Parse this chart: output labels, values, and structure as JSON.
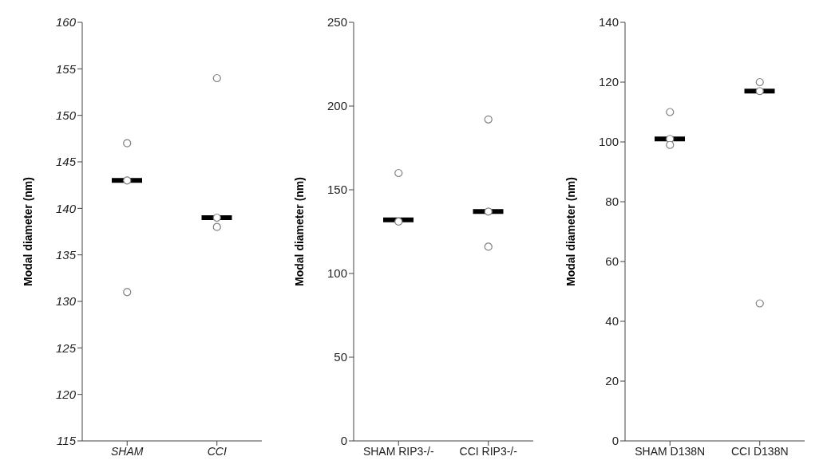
{
  "chart_data": [
    {
      "type": "box",
      "ylabel": "Modal diameter (nm)",
      "categories": [
        "SHAM",
        "CCI"
      ],
      "ylim": [
        115,
        160
      ],
      "yticks": [
        115,
        120,
        125,
        130,
        135,
        140,
        145,
        150,
        155,
        160
      ],
      "grid": false,
      "legend": false,
      "boxes": [
        {
          "low": 143,
          "q1": 143,
          "median": 143,
          "q3": 143,
          "high": 143
        },
        {
          "low": 139,
          "q1": 139,
          "median": 139,
          "q3": 139,
          "high": 139
        }
      ],
      "series": [
        {
          "type": "scatter",
          "color": "#808080",
          "marker": "circle",
          "x": [
            "SHAM",
            "SHAM",
            "SHAM",
            "CCI",
            "CCI",
            "CCI"
          ],
          "values": [
            147,
            143,
            131,
            154,
            139,
            138
          ]
        }
      ]
    },
    {
      "type": "box",
      "ylabel": "Modal diameter (nm)",
      "categories": [
        "SHAM RIP3-/-",
        "CCI RIP3-/-"
      ],
      "ylim": [
        0,
        250
      ],
      "yticks": [
        0,
        50,
        100,
        150,
        200,
        250
      ],
      "grid": false,
      "legend": false,
      "boxes": [
        {
          "low": 132,
          "q1": 132,
          "median": 132,
          "q3": 132,
          "high": 132
        },
        {
          "low": 137,
          "q1": 137,
          "median": 137,
          "q3": 137,
          "high": 137
        }
      ],
      "series": [
        {
          "type": "scatter",
          "color": "#808080",
          "marker": "circle",
          "x": [
            "SHAM RIP3-/-",
            "SHAM RIP3-/-",
            "SHAM RIP3-/-",
            "CCI RIP3-/-",
            "CCI RIP3-/-",
            "CCI RIP3-/-"
          ],
          "values": [
            160,
            null,
            131,
            192,
            137,
            116
          ]
        }
      ]
    },
    {
      "type": "box",
      "ylabel": "Modal diameter (nm)",
      "categories": [
        "SHAM D138N",
        "CCI D138N"
      ],
      "ylim": [
        0,
        140
      ],
      "yticks": [
        0,
        20,
        40,
        60,
        80,
        100,
        120,
        140
      ],
      "grid": false,
      "legend": false,
      "boxes": [
        {
          "low": 101,
          "q1": 101,
          "median": 101,
          "q3": 101,
          "high": 101
        },
        {
          "low": 117,
          "q1": 117,
          "median": 117,
          "q3": 117,
          "high": 117
        }
      ],
      "series": [
        {
          "type": "scatter",
          "color": "#808080",
          "marker": "circle",
          "x": [
            "SHAM D138N",
            "SHAM D138N",
            "SHAM D138N",
            "CCI D138N",
            "CCI D138N",
            "CCI D138N"
          ],
          "values": [
            110,
            101,
            99,
            120,
            117,
            46
          ]
        }
      ]
    }
  ]
}
